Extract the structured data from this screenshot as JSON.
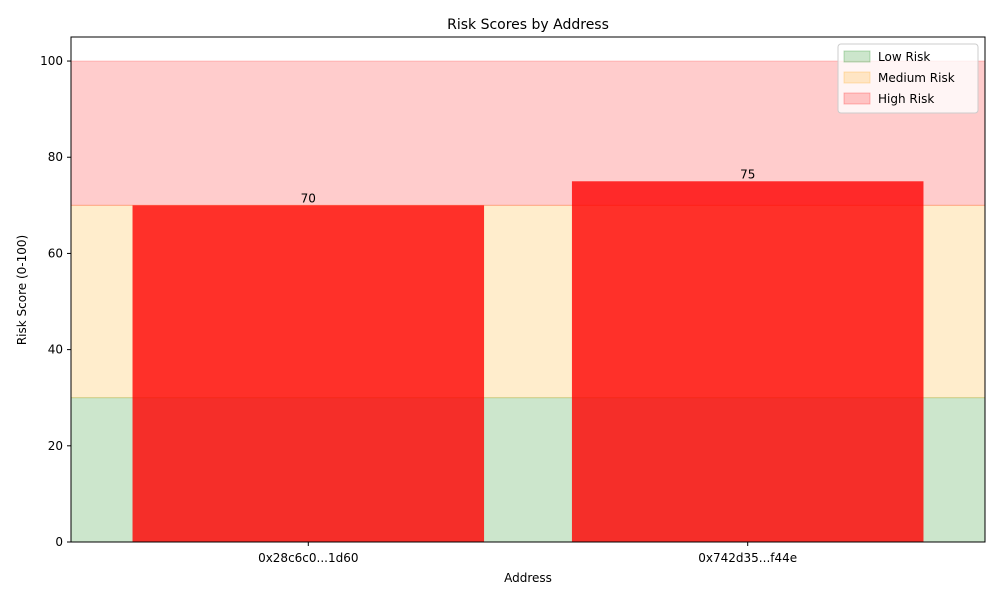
{
  "chart_data": {
    "type": "bar",
    "title": "Risk Scores by Address",
    "xlabel": "Address",
    "ylabel": "Risk Score (0-100)",
    "categories": [
      "0x28c6c0...1d60",
      "0x742d35...f44e"
    ],
    "values": [
      70,
      75
    ],
    "data_labels": [
      "70",
      "75"
    ],
    "ylim": [
      0,
      105
    ],
    "yticks": [
      "0",
      "20",
      "40",
      "60",
      "80",
      "100"
    ],
    "grid": false,
    "legend_position": "top-right",
    "bar_color": "#ff0000",
    "risk_bands": [
      {
        "name": "Low Risk",
        "from": 0,
        "to": 30,
        "color": "#008000"
      },
      {
        "name": "Medium Risk",
        "from": 30,
        "to": 70,
        "color": "#ffa500"
      },
      {
        "name": "High Risk",
        "from": 70,
        "to": 100,
        "color": "#ff0000"
      }
    ]
  }
}
